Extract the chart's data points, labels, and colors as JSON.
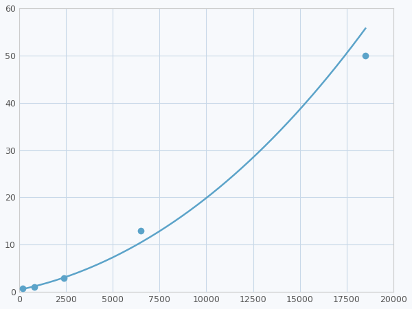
{
  "x_points": [
    200,
    800,
    2400,
    6500,
    18500
  ],
  "y_points": [
    0.7,
    1.0,
    3.0,
    13.0,
    50.0
  ],
  "line_color": "#5ba3c9",
  "marker_color": "#5ba3c9",
  "marker_size": 7,
  "linewidth": 1.8,
  "xlim": [
    0,
    20000
  ],
  "ylim": [
    0,
    60
  ],
  "xticks": [
    0,
    2500,
    5000,
    7500,
    10000,
    12500,
    15000,
    17500,
    20000
  ],
  "yticks": [
    0,
    10,
    20,
    30,
    40,
    50,
    60
  ],
  "grid_color": "#c8d8e8",
  "bg_color": "#f7f9fc",
  "figsize": [
    6.0,
    4.5
  ],
  "dpi": 100
}
